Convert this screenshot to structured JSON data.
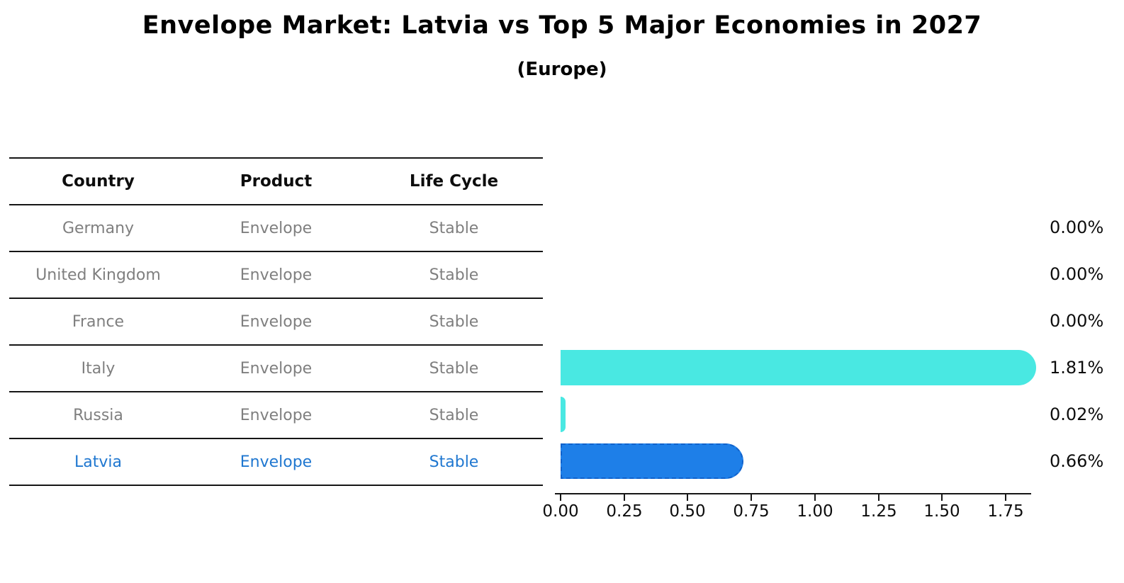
{
  "title": "Envelope Market: Latvia vs Top 5 Major Economies in 2027",
  "subtitle": "(Europe)",
  "table": {
    "headers": [
      "Country",
      "Product",
      "Life Cycle"
    ],
    "rows": [
      {
        "country": "Germany",
        "product": "Envelope",
        "life_cycle": "Stable",
        "highlighted": false
      },
      {
        "country": "United Kingdom",
        "product": "Envelope",
        "life_cycle": "Stable",
        "highlighted": false
      },
      {
        "country": "France",
        "product": "Envelope",
        "life_cycle": "Stable",
        "highlighted": false
      },
      {
        "country": "Italy",
        "product": "Envelope",
        "life_cycle": "Stable",
        "highlighted": false
      },
      {
        "country": "Russia",
        "product": "Envelope",
        "life_cycle": "Stable",
        "highlighted": false
      },
      {
        "country": "Latvia",
        "product": "Envelope",
        "life_cycle": "Stable",
        "highlighted": true
      }
    ]
  },
  "chart_data": {
    "type": "bar",
    "orientation": "horizontal",
    "title": "Envelope Market: Latvia vs Top 5 Major Economies in 2027",
    "subtitle": "(Europe)",
    "categories": [
      "Germany",
      "United Kingdom",
      "France",
      "Italy",
      "Russia",
      "Latvia"
    ],
    "values": [
      0.0,
      0.0,
      0.0,
      1.81,
      0.02,
      0.66
    ],
    "value_labels": [
      "0.00%",
      "0.00%",
      "0.00%",
      "1.81%",
      "0.02%",
      "0.66%"
    ],
    "x_ticks": [
      "0.00",
      "0.25",
      "0.50",
      "0.75",
      "1.00",
      "1.25",
      "1.50",
      "1.75"
    ],
    "xlim": [
      0,
      1.875
    ],
    "xlabel": "",
    "ylabel": "",
    "grid": false,
    "legend": "none",
    "highlight_index": 5,
    "colors": {
      "default_bar": "#49E8E2",
      "highlight_bar": "#1E7FE8",
      "highlight_border": "#1062CC",
      "highlight_text": "#1F77D0",
      "muted_text": "#7f7f7f",
      "axis": "#161616"
    }
  }
}
